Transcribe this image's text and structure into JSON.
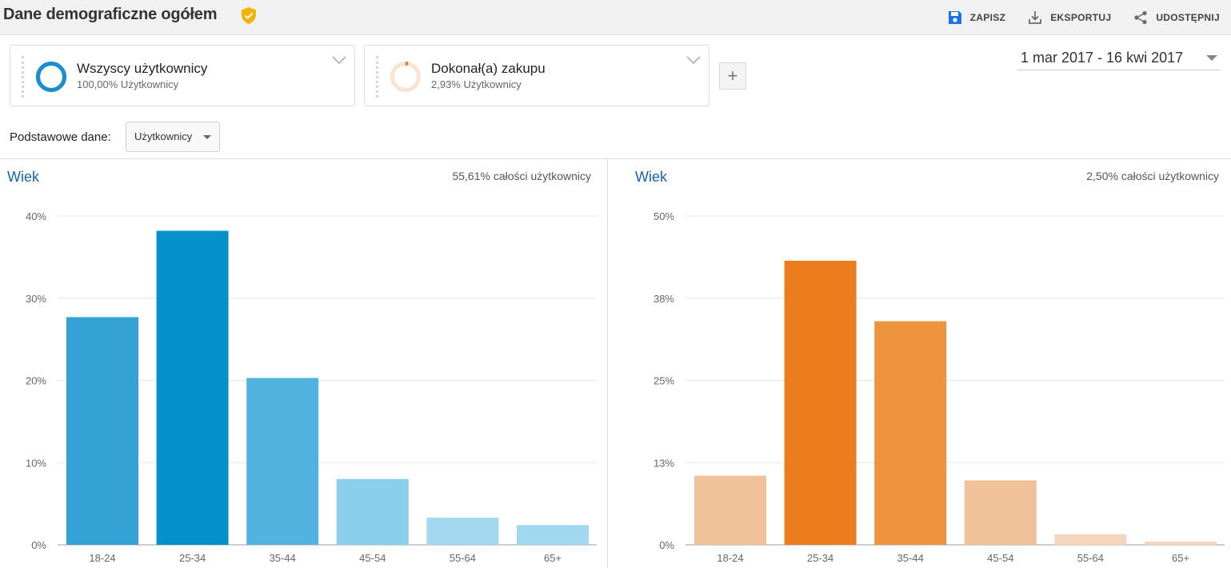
{
  "header": {
    "title": "Dane demograficzne ogółem",
    "verified_icon": "shield-check-icon",
    "actions": [
      {
        "label": "ZAPISZ",
        "icon": "save-icon"
      },
      {
        "label": "EKSPORTUJ",
        "icon": "download-icon"
      },
      {
        "label": "UDOSTĘPNIJ",
        "icon": "share-icon"
      }
    ]
  },
  "segments": [
    {
      "name": "Wszyscy użytkownicy",
      "subtitle": "100,00% Użytkownicy",
      "color": "#1a8fcd",
      "fraction": 1.0
    },
    {
      "name": "Dokonał(a) zakupu",
      "subtitle": "2,93% Użytkownicy",
      "color": "#f2c39a",
      "fraction": 0.0293
    }
  ],
  "add_segment_label": "+",
  "date_range": "1 mar 2017 - 16 kwi 2017",
  "metric": {
    "label": "Podstawowe dane:",
    "selected": "Użytkownicy"
  },
  "panels": [
    {
      "title": "Wiek",
      "share": "55,61% całości użytkownicy"
    },
    {
      "title": "Wiek",
      "share": "2,50% całości użytkownicy"
    }
  ],
  "chart_data": [
    {
      "type": "bar",
      "title": "Wiek",
      "categories": [
        "18-24",
        "25-34",
        "35-44",
        "45-54",
        "55-64",
        "65+"
      ],
      "values": [
        27.7,
        38.2,
        20.3,
        8.0,
        3.3,
        2.4
      ],
      "yticks": [
        "0%",
        "10%",
        "20%",
        "30%",
        "40%"
      ],
      "ylim": [
        0,
        40
      ],
      "grid": true,
      "colors": [
        "#33a3d6",
        "#0490cb",
        "#52b3de",
        "#8acfeb",
        "#a2d9f1",
        "#a2d9f1"
      ]
    },
    {
      "type": "bar",
      "title": "Wiek",
      "categories": [
        "18-24",
        "25-34",
        "35-44",
        "45-54",
        "55-64",
        "65+"
      ],
      "values": [
        10.5,
        43.2,
        34.0,
        9.8,
        1.6,
        0.5
      ],
      "yticks": [
        "0%",
        "13%",
        "25%",
        "38%",
        "50%"
      ],
      "ylim": [
        0,
        50
      ],
      "grid": true,
      "colors": [
        "#f1c199",
        "#eb7d1c",
        "#ee943f",
        "#f1c199",
        "#f3d6bd",
        "#f3d6bd"
      ]
    }
  ]
}
